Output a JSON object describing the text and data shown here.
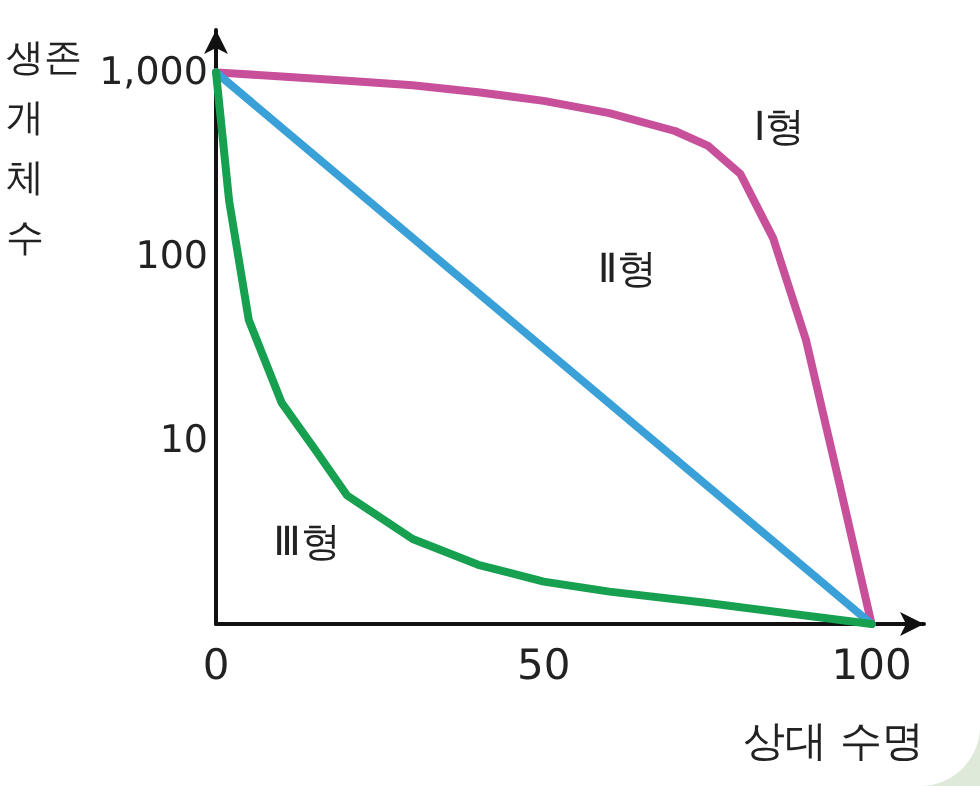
{
  "chart_data": {
    "type": "line",
    "xlabel": "상대 수명",
    "ylabel": "생존 개체수",
    "log": "y",
    "xlim": [
      0,
      108
    ],
    "xticks": [
      0,
      50,
      100
    ],
    "ylim": [
      1,
      1700
    ],
    "yticks": [
      {
        "value": 1000,
        "label": "1,000"
      },
      100,
      10
    ],
    "grid": false,
    "legend": false,
    "marker": "none",
    "line_style": "solid",
    "series": [
      {
        "name": "Ⅰ형",
        "color": "#c8509a",
        "x": [
          0,
          10,
          20,
          30,
          40,
          50,
          60,
          70,
          75,
          80,
          85,
          90,
          95,
          100
        ],
        "values": [
          1000,
          950,
          900,
          850,
          780,
          700,
          600,
          480,
          400,
          280,
          125,
          35,
          6,
          1
        ]
      },
      {
        "name": "Ⅱ형",
        "color": "#3aa0d8",
        "x": [
          0,
          50,
          100
        ],
        "values": [
          1000,
          31.6,
          1
        ]
      },
      {
        "name": "Ⅲ형",
        "color": "#16a050",
        "x": [
          0,
          2,
          5,
          10,
          15,
          20,
          30,
          40,
          50,
          60,
          75,
          100
        ],
        "values": [
          1000,
          200,
          45,
          16,
          9,
          5,
          2.9,
          2.1,
          1.7,
          1.5,
          1.3,
          1
        ]
      }
    ]
  }
}
